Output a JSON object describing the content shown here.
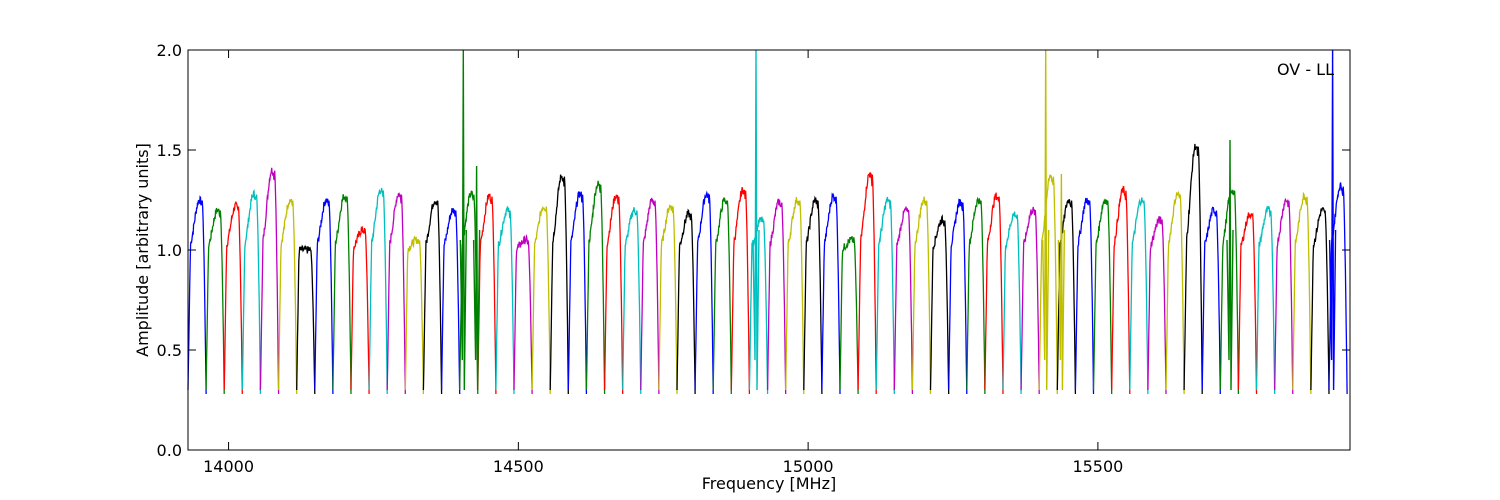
{
  "chart_data": {
    "type": "line",
    "title": "",
    "annotation": "OV - LL",
    "xlabel": "Frequency [MHz]",
    "ylabel": "Amplitude [arbitrary units]",
    "xlim": [
      13930,
      15935
    ],
    "ylim": [
      0.0,
      2.0
    ],
    "x_ticks": [
      14000,
      14500,
      15000,
      15500
    ],
    "x_tick_labels": [
      "14000",
      "14500",
      "15000",
      "15500"
    ],
    "y_ticks": [
      0.0,
      0.5,
      1.0,
      1.5,
      2.0
    ],
    "y_tick_labels": [
      "0.0",
      "0.5",
      "1.0",
      "1.5",
      "2.0"
    ],
    "grid": false,
    "legend": "none",
    "line_colors": [
      "#0000ff",
      "#008000",
      "#ff0000",
      "#00bfbf",
      "#bf00bf",
      "#bfbf00",
      "#000000"
    ],
    "channel_width_mhz": 31.25,
    "channel_start_mhz": 13930,
    "channel_peaks": [
      1.25,
      1.2,
      1.22,
      1.28,
      1.4,
      1.25,
      1.0,
      1.25,
      1.27,
      1.1,
      1.3,
      1.28,
      1.05,
      1.25,
      1.2,
      1.28,
      1.27,
      1.2,
      1.05,
      1.22,
      1.37,
      1.28,
      1.33,
      1.27,
      1.2,
      1.25,
      1.22,
      1.18,
      1.28,
      1.25,
      1.3,
      1.15,
      1.24,
      1.25,
      1.25,
      1.27,
      1.05,
      1.38,
      1.25,
      1.2,
      1.25,
      1.15,
      1.24,
      1.25,
      1.27,
      1.18,
      1.2,
      1.37,
      1.25,
      1.25,
      1.25,
      1.3,
      1.25,
      1.15,
      1.28,
      1.52,
      1.2,
      1.3,
      1.18,
      1.2,
      1.25,
      1.27,
      1.2,
      1.32
    ],
    "spikes": [
      {
        "x": 14405,
        "y": 2.0,
        "color": "#008000"
      },
      {
        "x": 14428,
        "y": 1.42,
        "color": "#008000"
      },
      {
        "x": 14910,
        "y": 2.0,
        "color": "#00bfbf"
      },
      {
        "x": 15410,
        "y": 2.0,
        "color": "#bfbf00"
      },
      {
        "x": 15437,
        "y": 1.38,
        "color": "#bfbf00"
      },
      {
        "x": 15728,
        "y": 1.55,
        "color": "#008000"
      },
      {
        "x": 15905,
        "y": 2.0,
        "color": "#0000ff"
      }
    ]
  }
}
